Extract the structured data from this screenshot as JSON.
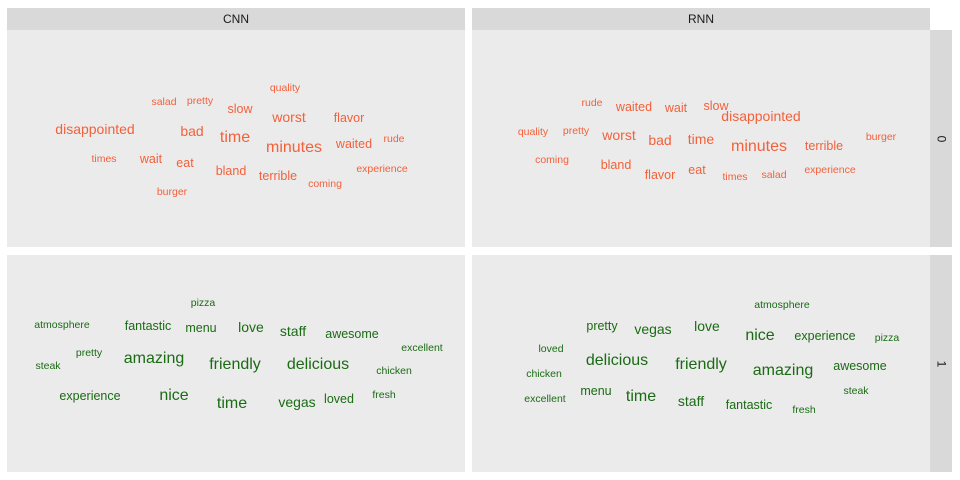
{
  "chart_data": {
    "type": "wordcloud-facet",
    "columns": [
      "CNN",
      "RNN"
    ],
    "rows": [
      "0",
      "1"
    ],
    "colors": {
      "0": "#f4603a",
      "1": "#1a6b14"
    },
    "panels": [
      {
        "column": "CNN",
        "row": "0",
        "words": [
          {
            "text": "quality",
            "rank": 3
          },
          {
            "text": "salad",
            "rank": 3
          },
          {
            "text": "pretty",
            "rank": 3
          },
          {
            "text": "slow",
            "rank": 2
          },
          {
            "text": "worst",
            "rank": 1
          },
          {
            "text": "flavor",
            "rank": 2
          },
          {
            "text": "disappointed",
            "rank": 1
          },
          {
            "text": "bad",
            "rank": 1
          },
          {
            "text": "time",
            "rank": 0
          },
          {
            "text": "minutes",
            "rank": 0
          },
          {
            "text": "waited",
            "rank": 2
          },
          {
            "text": "rude",
            "rank": 3
          },
          {
            "text": "times",
            "rank": 3
          },
          {
            "text": "wait",
            "rank": 2
          },
          {
            "text": "eat",
            "rank": 2
          },
          {
            "text": "bland",
            "rank": 2
          },
          {
            "text": "terrible",
            "rank": 2
          },
          {
            "text": "coming",
            "rank": 3
          },
          {
            "text": "experience",
            "rank": 3
          },
          {
            "text": "burger",
            "rank": 3
          }
        ]
      },
      {
        "column": "RNN",
        "row": "0",
        "words": [
          {
            "text": "rude",
            "rank": 3
          },
          {
            "text": "waited",
            "rank": 2
          },
          {
            "text": "wait",
            "rank": 2
          },
          {
            "text": "slow",
            "rank": 2
          },
          {
            "text": "disappointed",
            "rank": 1
          },
          {
            "text": "quality",
            "rank": 3
          },
          {
            "text": "pretty",
            "rank": 3
          },
          {
            "text": "worst",
            "rank": 1
          },
          {
            "text": "bad",
            "rank": 1
          },
          {
            "text": "time",
            "rank": 1
          },
          {
            "text": "minutes",
            "rank": 0
          },
          {
            "text": "terrible",
            "rank": 2
          },
          {
            "text": "burger",
            "rank": 3
          },
          {
            "text": "coming",
            "rank": 3
          },
          {
            "text": "bland",
            "rank": 2
          },
          {
            "text": "flavor",
            "rank": 2
          },
          {
            "text": "eat",
            "rank": 2
          },
          {
            "text": "times",
            "rank": 3
          },
          {
            "text": "salad",
            "rank": 3
          },
          {
            "text": "experience",
            "rank": 3
          }
        ]
      },
      {
        "column": "CNN",
        "row": "1",
        "words": [
          {
            "text": "pizza",
            "rank": 3
          },
          {
            "text": "atmosphere",
            "rank": 3
          },
          {
            "text": "fantastic",
            "rank": 2
          },
          {
            "text": "menu",
            "rank": 2
          },
          {
            "text": "love",
            "rank": 1
          },
          {
            "text": "staff",
            "rank": 1
          },
          {
            "text": "awesome",
            "rank": 2
          },
          {
            "text": "excellent",
            "rank": 3
          },
          {
            "text": "pretty",
            "rank": 3
          },
          {
            "text": "steak",
            "rank": 3
          },
          {
            "text": "amazing",
            "rank": 0
          },
          {
            "text": "friendly",
            "rank": 0
          },
          {
            "text": "delicious",
            "rank": 0
          },
          {
            "text": "chicken",
            "rank": 3
          },
          {
            "text": "experience",
            "rank": 2
          },
          {
            "text": "nice",
            "rank": 0
          },
          {
            "text": "time",
            "rank": 0
          },
          {
            "text": "vegas",
            "rank": 1
          },
          {
            "text": "loved",
            "rank": 2
          },
          {
            "text": "fresh",
            "rank": 3
          }
        ]
      },
      {
        "column": "RNN",
        "row": "1",
        "words": [
          {
            "text": "atmosphere",
            "rank": 3
          },
          {
            "text": "pretty",
            "rank": 2
          },
          {
            "text": "vegas",
            "rank": 1
          },
          {
            "text": "love",
            "rank": 1
          },
          {
            "text": "nice",
            "rank": 0
          },
          {
            "text": "experience",
            "rank": 2
          },
          {
            "text": "pizza",
            "rank": 3
          },
          {
            "text": "loved",
            "rank": 3
          },
          {
            "text": "delicious",
            "rank": 0
          },
          {
            "text": "friendly",
            "rank": 0
          },
          {
            "text": "amazing",
            "rank": 0
          },
          {
            "text": "awesome",
            "rank": 2
          },
          {
            "text": "chicken",
            "rank": 3
          },
          {
            "text": "menu",
            "rank": 2
          },
          {
            "text": "time",
            "rank": 0
          },
          {
            "text": "staff",
            "rank": 1
          },
          {
            "text": "fantastic",
            "rank": 2
          },
          {
            "text": "fresh",
            "rank": 3
          },
          {
            "text": "steak",
            "rank": 3
          },
          {
            "text": "excellent",
            "rank": 3
          }
        ]
      }
    ]
  }
}
